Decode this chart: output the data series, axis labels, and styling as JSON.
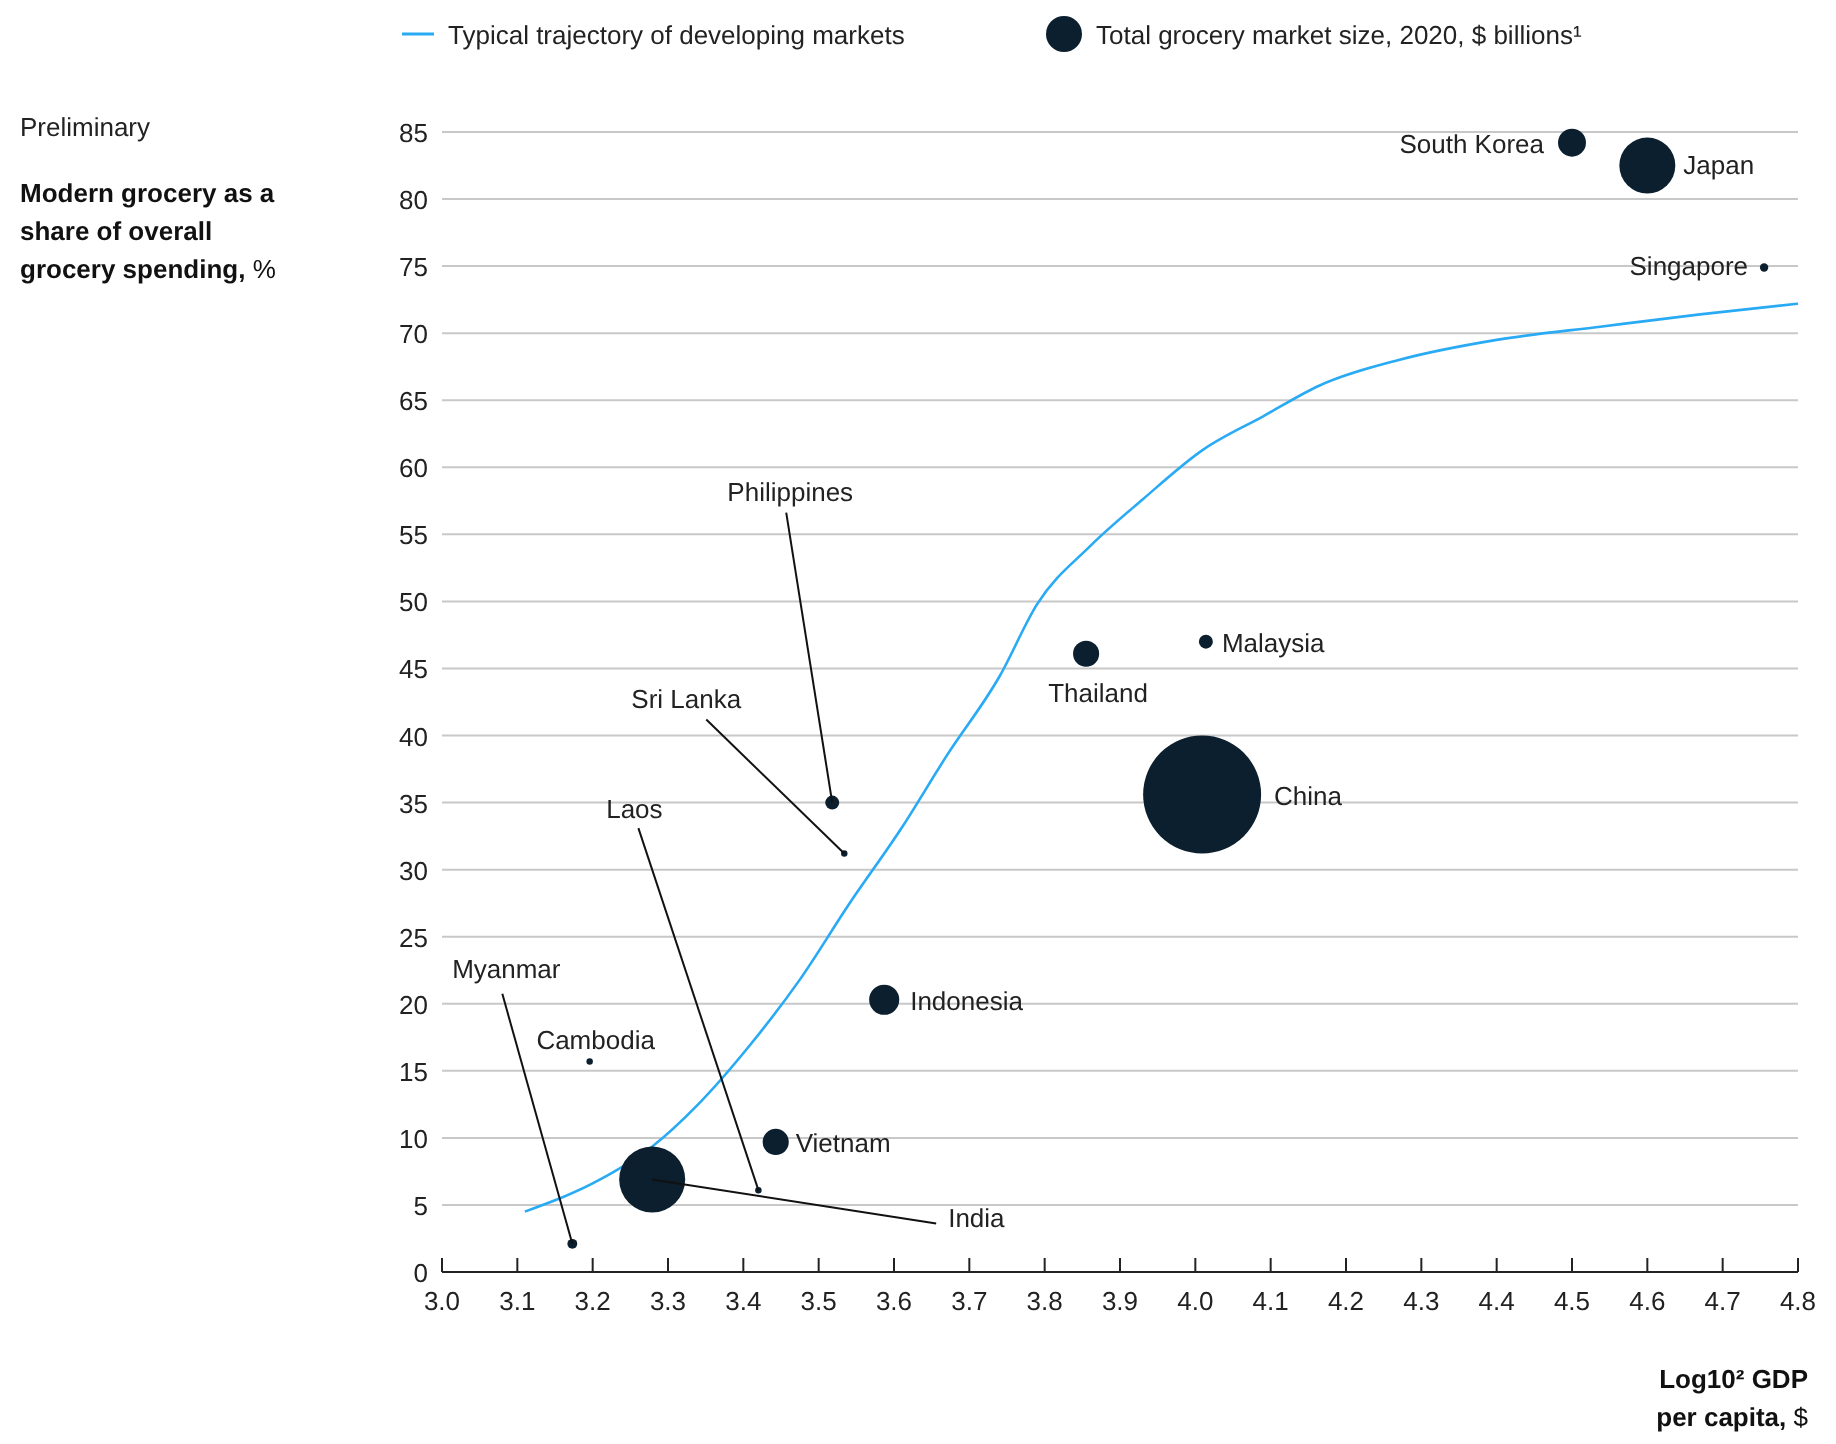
{
  "chart_data": {
    "type": "bubble",
    "subtitle": "Preliminary",
    "ylabel": "Modern grocery as a share of overall grocery spending, %",
    "xlabel": "Log10² GDP per capita, $",
    "xlim": [
      3.0,
      4.8
    ],
    "xticks": [
      {
        "value": 3,
        "label": "3.0"
      },
      3.1,
      3.2,
      3.3,
      3.4,
      3.5,
      3.6,
      3.7,
      3.8,
      3.9,
      {
        "value": 4,
        "label": "4.0"
      },
      4.1,
      4.2,
      4.3,
      4.4,
      4.5,
      4.6,
      4.7,
      4.8
    ],
    "ylim": [
      0,
      85
    ],
    "yticks": [
      0,
      5,
      10,
      15,
      20,
      25,
      30,
      35,
      40,
      45,
      50,
      55,
      60,
      65,
      70,
      75,
      80,
      85
    ],
    "grid": "y",
    "legend": "top",
    "series": [
      {
        "name": "Typical trajectory of developing markets",
        "type": "line",
        "color": "#29aaf4",
        "x": [
          3.11,
          3.21,
          3.28,
          3.34,
          3.41,
          3.475,
          3.54,
          3.61,
          3.67,
          3.74,
          3.79,
          3.86,
          3.93,
          4.01,
          4.09,
          4.165,
          4.27,
          4.4,
          4.54,
          4.67,
          4.8
        ],
        "values": [
          4.5,
          6.9,
          9.4,
          12.5,
          17,
          21.8,
          27.4,
          33.1,
          38.5,
          44.4,
          49.8,
          54.1,
          57.6,
          61.3,
          63.8,
          66.1,
          68,
          69.5,
          70.5,
          71.4,
          72.2
        ]
      },
      {
        "name": "Total grocery market size, 2020, $ billions¹",
        "color": "#0b1f2e",
        "x": [
          4.5,
          4.6,
          4.755,
          4.014,
          3.855,
          4.009,
          3.518,
          3.534,
          3.587,
          3.42,
          3.196,
          3.443,
          3.279,
          3.173
        ],
        "values": [
          84.2,
          82.5,
          74.9,
          47,
          46.1,
          35.6,
          35,
          31.2,
          20.3,
          6.1,
          15.7,
          9.7,
          6.9,
          2.1
        ],
        "sizes": [
          0.056,
          0.225,
          0.005,
          0.014,
          0.049,
          1,
          0.014,
          0.003,
          0.065,
          0.003,
          0.003,
          0.049,
          0.313,
          0.007
        ]
      }
    ],
    "annotations": [
      {
        "text": "South Korea",
        "x": 4.5,
        "y": 84.2
      },
      {
        "text": "Japan",
        "x": 4.6,
        "y": 82.5
      },
      {
        "text": "Singapore",
        "x": 4.755,
        "y": 74.9
      },
      {
        "text": "Malaysia",
        "x": 4.014,
        "y": 47
      },
      {
        "text": "Thailand",
        "x": 3.855,
        "y": 46.1
      },
      {
        "text": "China",
        "x": 4.009,
        "y": 35.6
      },
      {
        "text": "Philippines",
        "x": 3.518,
        "y": 35
      },
      {
        "text": "Sri Lanka",
        "x": 3.534,
        "y": 31.2
      },
      {
        "text": "Indonesia",
        "x": 3.587,
        "y": 20.3
      },
      {
        "text": "Laos",
        "x": 3.42,
        "y": 6.1
      },
      {
        "text": "Cambodia",
        "x": 3.196,
        "y": 15.7
      },
      {
        "text": "Vietnam",
        "x": 3.443,
        "y": 9.7
      },
      {
        "text": "India",
        "x": 3.279,
        "y": 6.9
      },
      {
        "text": "Myanmar",
        "x": 3.173,
        "y": 2.1
      }
    ]
  }
}
